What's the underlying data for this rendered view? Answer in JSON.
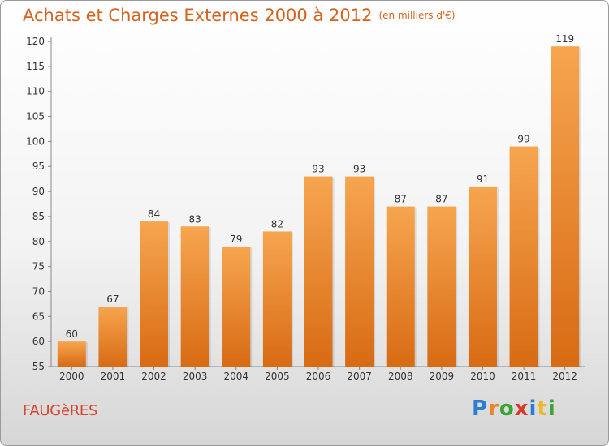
{
  "title": "Achats et Charges Externes 2000 à 2012",
  "unit": "(en milliers d'€)",
  "commune": "FAUGèRES",
  "logo": {
    "letters": [
      "P",
      "r",
      "o",
      "x",
      "i",
      "t",
      "i"
    ],
    "colors": [
      "#2a7fd4",
      "#e8872a",
      "#3aa535",
      "#d63a2a",
      "#2a7fd4",
      "#e8b92a",
      "#3aa535"
    ]
  },
  "colors": {
    "bar_top": "#f7a54f",
    "bar_bottom": "#d86b14",
    "accent": "#d4631e"
  },
  "chart_data": {
    "type": "bar",
    "categories": [
      "2000",
      "2001",
      "2002",
      "2003",
      "2004",
      "2005",
      "2006",
      "2007",
      "2008",
      "2009",
      "2010",
      "2011",
      "2012"
    ],
    "values": [
      60,
      67,
      84,
      83,
      79,
      82,
      93,
      93,
      87,
      87,
      91,
      99,
      119
    ],
    "ylim": [
      55,
      120
    ],
    "yticks": [
      55,
      60,
      65,
      70,
      75,
      80,
      85,
      90,
      95,
      100,
      105,
      110,
      115,
      120
    ],
    "grid": false
  }
}
